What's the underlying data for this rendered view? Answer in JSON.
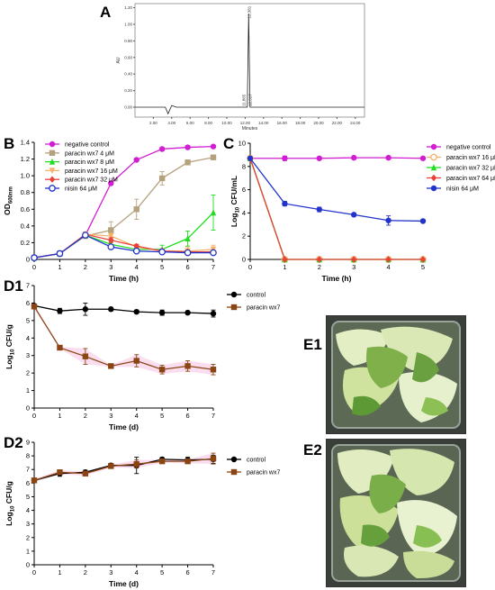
{
  "panel_labels": {
    "A": "A",
    "B": "B",
    "C": "C",
    "D1": "D1",
    "D2": "D2",
    "E1": "E1",
    "E2": "E2"
  },
  "chart_data": [
    {
      "id": "A",
      "type": "line",
      "xlabel": "Minutes",
      "ylabel": "AU",
      "xlim": [
        0,
        25
      ],
      "ylim": [
        -0.12,
        1.25
      ],
      "x_ticks": [
        "2.00",
        "4.00",
        "6.00",
        "8.00",
        "10.00",
        "12.00",
        "14.00",
        "16.00",
        "18.00",
        "20.00",
        "22.00",
        "24.00"
      ],
      "y_ticks": [
        "0.00",
        "0.20",
        "0.40",
        "0.60",
        "0.80",
        "1.00",
        "1.20"
      ],
      "peak_labels": [
        "12.381",
        "11.865",
        "12.517"
      ],
      "peak_time": 12.381,
      "peak_height": 1.13,
      "dip_time": 3.6,
      "dip_depth": -0.08
    },
    {
      "id": "B",
      "type": "line",
      "xlabel": "Time (h)",
      "ylabel_main": "OD",
      "ylabel_sub": "600nm",
      "xlim": [
        0,
        7
      ],
      "ylim": [
        0,
        1.4
      ],
      "x_ticks": [
        "0",
        "1",
        "2",
        "3",
        "4",
        "5",
        "6",
        "7"
      ],
      "y_ticks": [
        "0",
        "0.2",
        "0.4",
        "0.6",
        "0.8",
        "1.0",
        "1.2",
        "1.4"
      ],
      "x": [
        0,
        1,
        2,
        3,
        4,
        5,
        6,
        7
      ],
      "series": [
        {
          "name": "negative control",
          "color": "#d21ed2",
          "marker": "circle",
          "values": [
            0.02,
            0.07,
            0.29,
            0.91,
            1.19,
            1.32,
            1.34,
            1.35
          ],
          "err": [
            0.01,
            0.01,
            0.02,
            0.02,
            0.02,
            0.02,
            0.01,
            0.01
          ]
        },
        {
          "name": "paracin wx7 4 μM",
          "color": "#b5a17e",
          "marker": "square",
          "values": [
            0.02,
            0.07,
            0.28,
            0.35,
            0.6,
            0.97,
            1.16,
            1.22
          ],
          "err": [
            0.01,
            0.01,
            0.03,
            0.1,
            0.12,
            0.08,
            0.03,
            0.02
          ]
        },
        {
          "name": "paracin wx7 8 μM",
          "color": "#22dd22",
          "marker": "triangle",
          "values": [
            0.02,
            0.07,
            0.29,
            0.18,
            0.12,
            0.12,
            0.25,
            0.56
          ],
          "err": [
            0.01,
            0.01,
            0.02,
            0.03,
            0.02,
            0.05,
            0.09,
            0.21
          ]
        },
        {
          "name": "paracin wx7 16 μM",
          "color": "#f5b26b",
          "marker": "triangle-down",
          "values": [
            0.02,
            0.07,
            0.3,
            0.28,
            0.15,
            0.1,
            0.1,
            0.12
          ],
          "err": [
            0.01,
            0.01,
            0.02,
            0.02,
            0.02,
            0.02,
            0.05,
            0.05
          ]
        },
        {
          "name": "paracin wx7 32 μM",
          "color": "#e8403a",
          "marker": "diamond",
          "values": [
            0.02,
            0.07,
            0.3,
            0.23,
            0.16,
            0.1,
            0.09,
            0.09
          ],
          "err": [
            0.01,
            0.01,
            0.02,
            0.03,
            0.02,
            0.02,
            0.02,
            0.02
          ]
        },
        {
          "name": "nisin 64 μM",
          "color": "#2233cc",
          "marker": "open-circle",
          "values": [
            0.02,
            0.07,
            0.29,
            0.15,
            0.1,
            0.09,
            0.08,
            0.08
          ],
          "err": [
            0.01,
            0.01,
            0.02,
            0.02,
            0.02,
            0.01,
            0.01,
            0.01
          ]
        }
      ]
    },
    {
      "id": "C",
      "type": "line",
      "xlabel": "Time (h)",
      "ylabel": "Log10 CFU/mL",
      "ylabel_prefix": "Log",
      "ylabel_sub": "10",
      "ylabel_suffix": " CFU/mL",
      "xlim": [
        0,
        5
      ],
      "ylim": [
        0,
        10
      ],
      "x_ticks": [
        "0",
        "1",
        "2",
        "3",
        "4",
        "5"
      ],
      "y_ticks": [
        "0",
        "2",
        "4",
        "6",
        "8",
        "10"
      ],
      "x": [
        0,
        1,
        2,
        3,
        4,
        5
      ],
      "series": [
        {
          "name": "negative control",
          "color": "#d21ed2",
          "marker": "circle",
          "values": [
            8.7,
            8.7,
            8.7,
            8.75,
            8.75,
            8.7
          ],
          "err": [
            0.1,
            0.2,
            0.1,
            0.1,
            0.1,
            0.1
          ]
        },
        {
          "name": "paracin wx7 16 μM",
          "color": "#f5b26b",
          "marker": "open-circle",
          "values": [
            8.7,
            0,
            0,
            0,
            0,
            0
          ],
          "err": [
            0,
            0,
            0,
            0,
            0,
            0
          ]
        },
        {
          "name": "paracin wx7 32 μM",
          "color": "#22dd22",
          "marker": "triangle",
          "values": [
            8.7,
            0,
            0,
            0,
            0,
            0
          ],
          "err": [
            0,
            0,
            0,
            0,
            0,
            0
          ]
        },
        {
          "name": "paracin wx7 64 μM",
          "color": "#e8403a",
          "marker": "diamond",
          "values": [
            8.7,
            0,
            0,
            0,
            0,
            0
          ],
          "err": [
            0,
            0,
            0,
            0,
            0,
            0
          ]
        },
        {
          "name": "nisin 64 μM",
          "color": "#2233cc",
          "marker": "circle",
          "values": [
            8.7,
            4.8,
            4.3,
            3.85,
            3.35,
            3.3
          ],
          "err": [
            0.1,
            0.2,
            0.2,
            0.1,
            0.4,
            0.1
          ]
        }
      ]
    },
    {
      "id": "D1",
      "type": "line",
      "xlabel": "Time (d)",
      "ylabel": "Log10 CFU/g",
      "ylabel_prefix": "Log",
      "ylabel_sub": "10",
      "ylabel_suffix": " CFU/g",
      "xlim": [
        0,
        7
      ],
      "ylim": [
        0,
        7
      ],
      "x_ticks": [
        "0",
        "1",
        "2",
        "3",
        "4",
        "5",
        "6",
        "7"
      ],
      "y_ticks": [
        "0",
        "1",
        "2",
        "3",
        "4",
        "5",
        "6",
        "7"
      ],
      "x": [
        0,
        1,
        2,
        3,
        4,
        5,
        6,
        7
      ],
      "series": [
        {
          "name": "control",
          "color": "#000000",
          "marker": "circle",
          "values": [
            5.85,
            5.55,
            5.65,
            5.65,
            5.5,
            5.45,
            5.45,
            5.4
          ],
          "err": [
            0.1,
            0.15,
            0.35,
            0.1,
            0.1,
            0.15,
            0.1,
            0.2
          ]
        },
        {
          "name": "paracin wx7",
          "color": "#8b4513",
          "marker": "square",
          "values": [
            5.8,
            3.45,
            2.95,
            2.4,
            2.7,
            2.2,
            2.4,
            2.2
          ],
          "err": [
            0.1,
            0.05,
            0.45,
            0.05,
            0.35,
            0.25,
            0.3,
            0.3
          ]
        }
      ]
    },
    {
      "id": "D2",
      "type": "line",
      "xlabel": "Time (d)",
      "ylabel": "Log10 CFU/g",
      "ylabel_prefix": "Log",
      "ylabel_sub": "10",
      "ylabel_suffix": " CFU/g",
      "xlim": [
        0,
        7
      ],
      "ylim": [
        0,
        9
      ],
      "x_ticks": [
        "0",
        "1",
        "2",
        "3",
        "4",
        "5",
        "6",
        "7"
      ],
      "y_ticks": [
        "0",
        "1",
        "2",
        "3",
        "4",
        "5",
        "6",
        "7",
        "8",
        "9"
      ],
      "x": [
        0,
        1,
        2,
        3,
        4,
        5,
        6,
        7
      ],
      "series": [
        {
          "name": "control",
          "color": "#000000",
          "marker": "circle",
          "values": [
            6.2,
            6.7,
            6.8,
            7.3,
            7.3,
            7.75,
            7.7,
            7.75
          ],
          "err": [
            0.1,
            0.2,
            0.15,
            0.15,
            0.6,
            0.1,
            0.2,
            0.3
          ]
        },
        {
          "name": "paracin wx7",
          "color": "#8b4513",
          "marker": "square",
          "values": [
            6.2,
            6.8,
            6.7,
            7.25,
            7.4,
            7.6,
            7.6,
            7.8
          ],
          "err": [
            0.1,
            0.15,
            0.15,
            0.1,
            0.3,
            0.1,
            0.15,
            0.4
          ]
        }
      ]
    }
  ]
}
